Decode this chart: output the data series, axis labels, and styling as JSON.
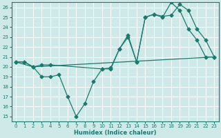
{
  "xlabel": "Humidex (Indice chaleur)",
  "bg_color": "#cfe8e8",
  "grid_color": "#ffffff",
  "line_color": "#1a7a6e",
  "xlim": [
    -0.5,
    23.5
  ],
  "ylim": [
    14.5,
    26.5
  ],
  "xticks": [
    0,
    1,
    2,
    3,
    4,
    5,
    6,
    7,
    8,
    9,
    10,
    11,
    12,
    13,
    14,
    15,
    16,
    17,
    18,
    19,
    20,
    21,
    22,
    23
  ],
  "yticks": [
    15,
    16,
    17,
    18,
    19,
    20,
    21,
    22,
    23,
    24,
    25,
    26
  ],
  "line_flat": {
    "x": [
      0,
      2,
      23
    ],
    "y": [
      20.5,
      20.0,
      21.0
    ]
  },
  "line_dip": {
    "x": [
      0,
      1,
      2,
      3,
      4,
      5,
      6,
      7,
      8,
      9,
      10,
      11,
      12,
      13,
      14,
      15,
      16,
      17,
      18,
      19,
      20,
      21,
      22,
      23
    ],
    "y": [
      20.5,
      20.5,
      20.0,
      19.0,
      19.0,
      19.2,
      17.0,
      15.0,
      16.3,
      18.5,
      19.8,
      19.8,
      21.8,
      23.0,
      20.5,
      25.0,
      25.3,
      25.0,
      26.5,
      25.7,
      23.8,
      22.7,
      21.0,
      21.0
    ]
  },
  "line_upper": {
    "x": [
      0,
      1,
      2,
      3,
      4,
      10,
      11,
      12,
      13,
      14,
      15,
      16,
      17,
      18,
      19,
      20,
      21,
      22,
      23
    ],
    "y": [
      20.5,
      20.5,
      20.0,
      20.2,
      20.2,
      19.8,
      19.9,
      21.8,
      23.2,
      20.5,
      25.0,
      25.3,
      25.1,
      25.2,
      26.3,
      25.7,
      23.8,
      22.7,
      21.0
    ]
  }
}
